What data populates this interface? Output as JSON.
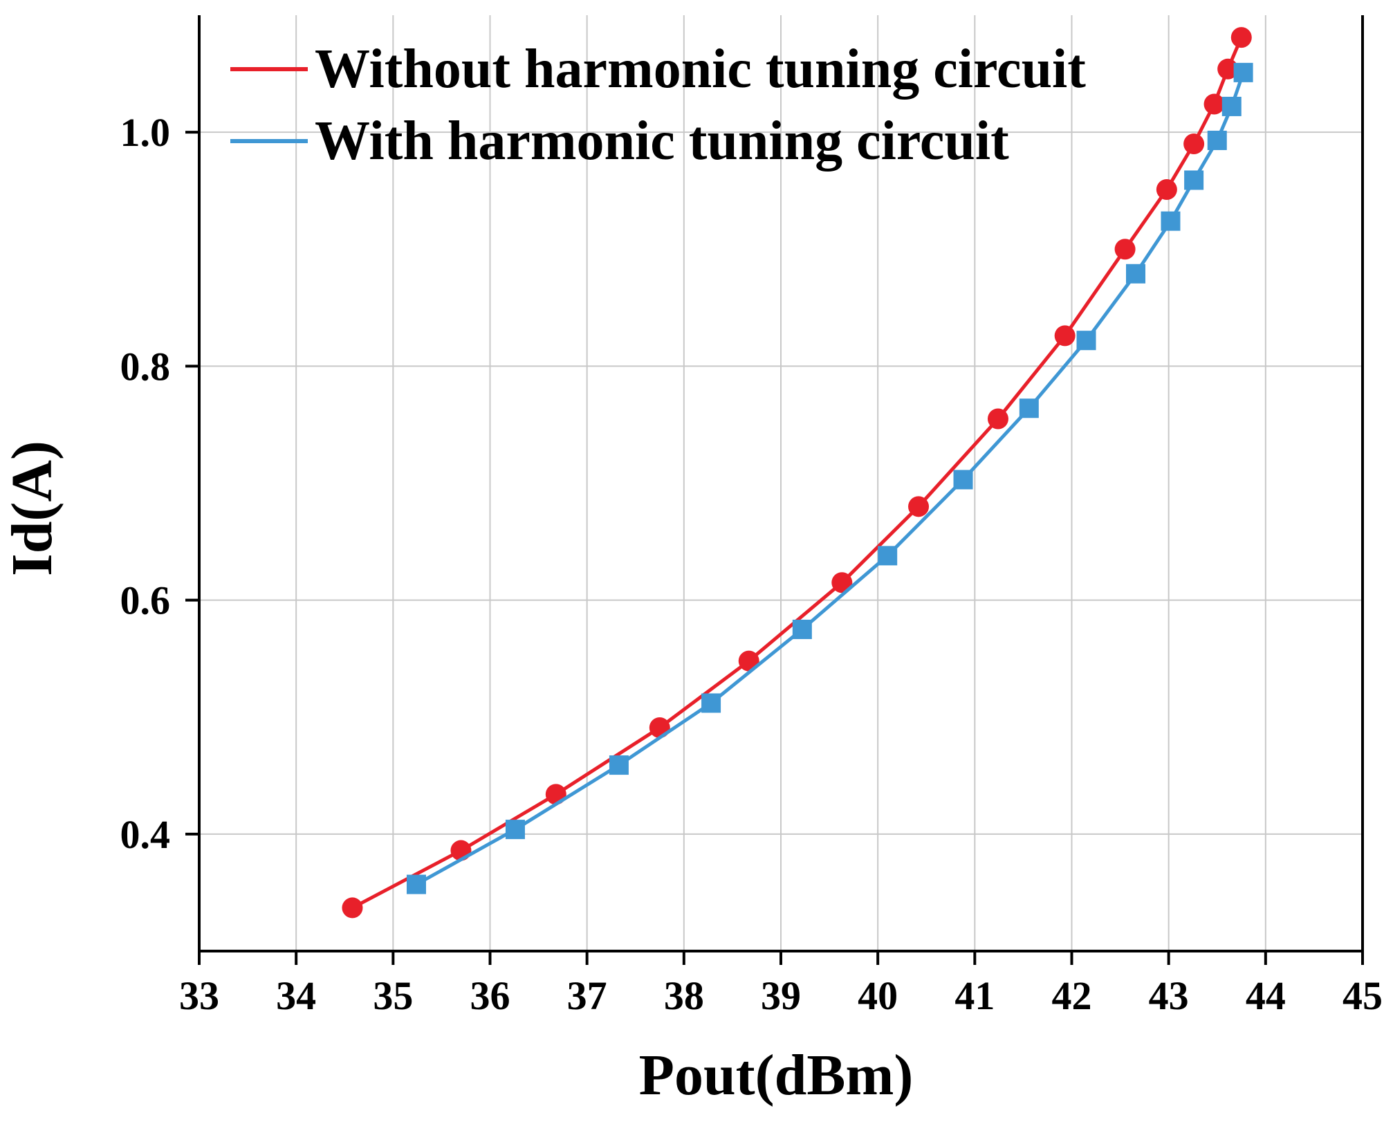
{
  "chart_data": {
    "type": "line",
    "title": "",
    "xlabel": "Pout(dBm)",
    "ylabel": "Id(A)",
    "xlim": [
      33,
      45
    ],
    "ylim": [
      0.3,
      1.1
    ],
    "xticks": [
      33,
      34,
      35,
      36,
      37,
      38,
      39,
      40,
      41,
      42,
      43,
      44,
      45
    ],
    "yticks": [
      0.4,
      0.6,
      0.8,
      1.0
    ],
    "xtick_labels": [
      "33",
      "34",
      "35",
      "36",
      "37",
      "38",
      "39",
      "40",
      "41",
      "42",
      "43",
      "44",
      "45"
    ],
    "ytick_labels": [
      "0.4",
      "0.6",
      "0.8",
      "1.0"
    ],
    "grid": true,
    "legend_position": "top-left",
    "series": [
      {
        "name": "Without harmonic tuning circuit",
        "color": "#e8202a",
        "marker": "circle",
        "x": [
          34.58,
          35.7,
          36.68,
          37.75,
          38.67,
          39.63,
          40.42,
          41.24,
          41.93,
          42.55,
          42.98,
          43.26,
          43.47,
          43.61,
          43.75
        ],
        "y": [
          0.337,
          0.386,
          0.434,
          0.491,
          0.548,
          0.615,
          0.68,
          0.755,
          0.826,
          0.9,
          0.951,
          0.99,
          1.024,
          1.054,
          1.081
        ]
      },
      {
        "name": "With harmonic tuning circuit",
        "color": "#3f97d4",
        "marker": "square",
        "x": [
          35.24,
          36.26,
          37.33,
          38.28,
          39.22,
          40.1,
          40.88,
          41.56,
          42.15,
          42.66,
          43.02,
          43.26,
          43.5,
          43.65,
          43.77
        ],
        "y": [
          0.357,
          0.404,
          0.459,
          0.512,
          0.575,
          0.638,
          0.703,
          0.764,
          0.822,
          0.879,
          0.924,
          0.959,
          0.993,
          1.022,
          1.051
        ]
      }
    ]
  }
}
